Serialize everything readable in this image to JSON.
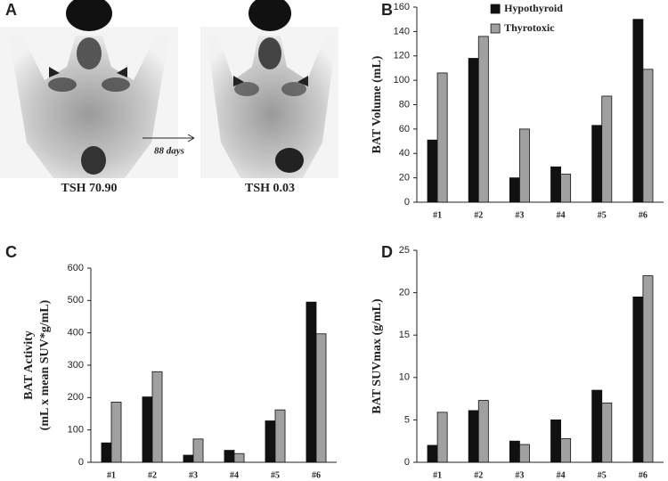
{
  "panel_a": {
    "label": "A",
    "left_caption": "TSH 70.90",
    "right_caption": "TSH 0.03",
    "arrow_label": "88 days"
  },
  "chart_data": [
    {
      "type": "bar",
      "panel_label": "B",
      "ylabel": [
        "BAT Volume (mL)"
      ],
      "categories": [
        "#1",
        "#2",
        "#3",
        "#4",
        "#5",
        "#6"
      ],
      "series": [
        {
          "name": "Hypothyroid",
          "color": "#111111",
          "values": [
            51,
            118,
            20,
            29,
            63,
            150
          ]
        },
        {
          "name": "Thyrotoxic",
          "color": "#a0a0a0",
          "values": [
            106,
            136,
            60,
            23,
            87,
            109
          ]
        }
      ],
      "ylim": [
        0,
        160
      ],
      "yticks": [
        0,
        20,
        40,
        60,
        80,
        100,
        120,
        140,
        160
      ],
      "legend": "upper center"
    },
    {
      "type": "bar",
      "panel_label": "C",
      "ylabel": [
        "BAT Activity",
        "(mL x mean SUV*g/mL)"
      ],
      "categories": [
        "#1",
        "#2",
        "#3",
        "#4",
        "#5",
        "#6"
      ],
      "series": [
        {
          "color": "#111111",
          "values": [
            60,
            202,
            22,
            37,
            128,
            495
          ]
        },
        {
          "color": "#a0a0a0",
          "values": [
            186,
            280,
            72,
            27,
            162,
            397
          ]
        }
      ],
      "ylim": [
        0,
        600
      ],
      "yticks": [
        0,
        100,
        200,
        300,
        400,
        500,
        600
      ]
    },
    {
      "type": "bar",
      "panel_label": "D",
      "ylabel": [
        "BAT SUVmax (g/mL)"
      ],
      "categories": [
        "#1",
        "#2",
        "#3",
        "#4",
        "#5",
        "#6"
      ],
      "series": [
        {
          "color": "#111111",
          "values": [
            2,
            6.1,
            2.5,
            5,
            8.5,
            19.5
          ]
        },
        {
          "color": "#a0a0a0",
          "values": [
            5.9,
            7.3,
            2.1,
            2.8,
            7,
            22
          ]
        }
      ],
      "ylim": [
        0,
        25
      ],
      "yticks": [
        0,
        5,
        10,
        15,
        20,
        25
      ]
    }
  ]
}
